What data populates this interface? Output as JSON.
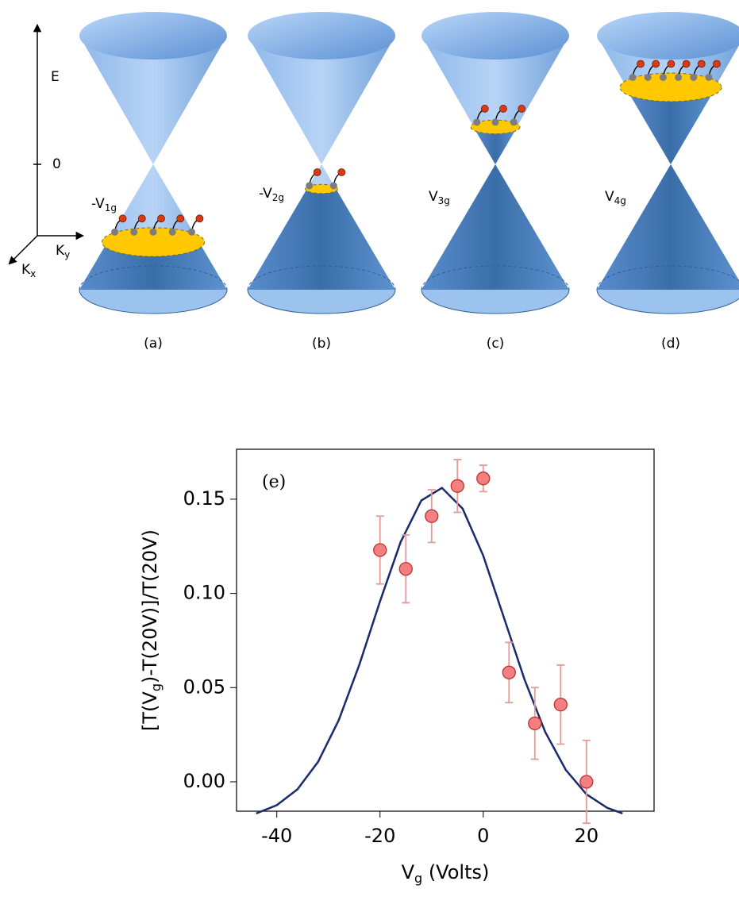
{
  "diagram": {
    "energy_axis": {
      "label": "E",
      "zero": "0",
      "ky": [
        "K",
        "y"
      ],
      "kx": [
        "K",
        "x"
      ]
    },
    "panels": [
      {
        "gate": [
          "-V",
          "1g"
        ],
        "caption": "(a)"
      },
      {
        "gate": [
          "-V",
          "2g"
        ],
        "caption": "(b)"
      },
      {
        "gate": [
          "V",
          "3g"
        ],
        "caption": "(c)"
      },
      {
        "gate": [
          "V",
          "4g"
        ],
        "caption": "(d)"
      }
    ]
  },
  "chart_data": {
    "type": "scatter",
    "annotation": "(e)",
    "x_label": [
      "V",
      "g",
      " (Volts)"
    ],
    "y_label": [
      "[T(V",
      "g",
      ")-T(20V)]/T(20V)"
    ],
    "xlim": [
      -47.8,
      33.1
    ],
    "ylim": [
      -0.0156,
      0.1765
    ],
    "xticks": [
      -40,
      -20,
      0,
      20
    ],
    "yticks": [
      {
        "value": 0,
        "label": "0.00"
      },
      {
        "value": 0.05,
        "label": "0.05"
      },
      {
        "value": 0.1,
        "label": "0.10"
      },
      {
        "value": 0.15,
        "label": "0.15"
      }
    ],
    "series": [
      {
        "type": "line",
        "color": "#1b2a6b",
        "x": [
          -44,
          -40,
          -36,
          -32,
          -28,
          -24,
          -20,
          -16,
          -12,
          -8,
          -4,
          0,
          4,
          8,
          12,
          16,
          20,
          24,
          27
        ],
        "values": [
          -0.0168,
          -0.0124,
          -0.004,
          0.0106,
          0.0327,
          0.0622,
          0.0958,
          0.1273,
          0.1493,
          0.156,
          0.145,
          0.12,
          0.0872,
          0.0543,
          0.0265,
          0.0063,
          -0.0066,
          -0.0138,
          -0.0168
        ]
      },
      {
        "type": "points",
        "color": "#f28080",
        "error_color": "#e59a9a",
        "x": [
          -20,
          -15,
          -10,
          -5,
          0,
          5,
          10,
          15,
          20
        ],
        "values": [
          0.123,
          0.113,
          0.141,
          0.157,
          0.161,
          0.058,
          0.031,
          0.041,
          0.0
        ],
        "errors": [
          0.018,
          0.018,
          0.014,
          0.014,
          0.007,
          0.016,
          0.019,
          0.021,
          0.022
        ]
      }
    ]
  }
}
